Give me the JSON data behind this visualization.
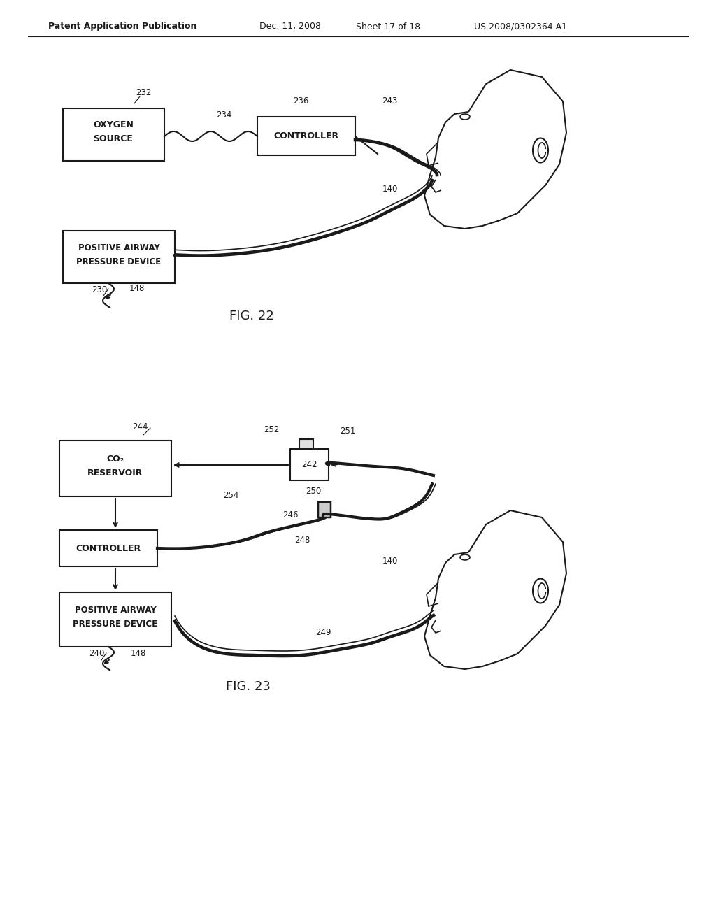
{
  "bg_color": "#ffffff",
  "header_text": "Patent Application Publication",
  "header_date": "Dec. 11, 2008",
  "header_sheet": "Sheet 17 of 18",
  "header_patent": "US 2008/0302364 A1",
  "fig22_label": "FIG. 22",
  "fig23_label": "FIG. 23",
  "line_color": "#1a1a1a",
  "lw": 1.5
}
